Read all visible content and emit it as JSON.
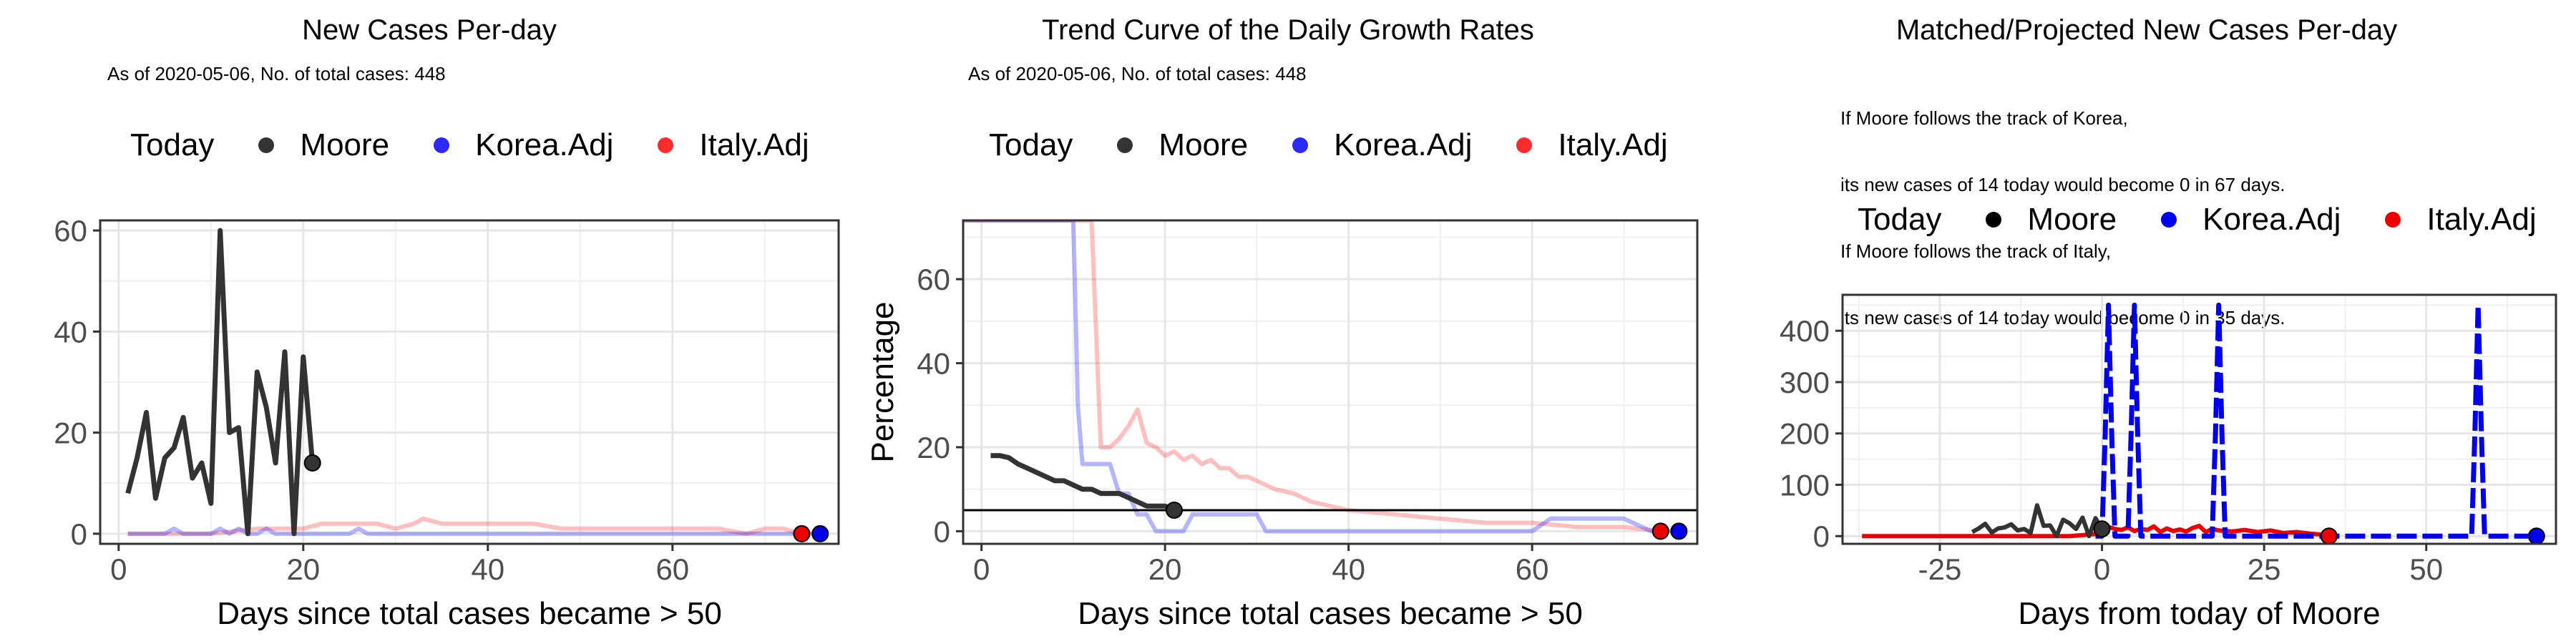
{
  "legend": {
    "title": "Today",
    "items": [
      {
        "label": "Moore",
        "color": "#333333"
      },
      {
        "label": "Korea.Adj",
        "color": "#2a2aff"
      },
      {
        "label": "Italy.Adj",
        "color": "#ff2a2a"
      }
    ]
  },
  "colors": {
    "moore": "#333333",
    "korea": "#2a2aff",
    "italy": "#ff2a2a"
  },
  "panels": [
    {
      "title": "New Cases Per-day",
      "subtitle": "As of 2020-05-06, No. of total cases: 448"
    },
    {
      "title": "Trend Curve of the Daily Growth Rates",
      "subtitle": "As of 2020-05-06, No. of total cases: 448"
    },
    {
      "title": "Matched/Projected New Cases Per-day",
      "subtitle_lines": [
        "If Moore follows the track of Korea,",
        "its new cases of 14 today would become 0 in 67 days.",
        "If Moore follows the track of Italy,",
        "its new cases of 14 today would become 0 in 35 days."
      ]
    }
  ],
  "chart_data": [
    {
      "type": "line",
      "title": "New Cases Per-day",
      "subtitle": "As of 2020-05-06, No. of total cases: 448",
      "xlabel": "Days since total cases became > 50",
      "ylabel": "",
      "xlim": [
        -2,
        78
      ],
      "ylim": [
        -2,
        62
      ],
      "xticks": [
        0,
        20,
        40,
        60
      ],
      "yticks": [
        0,
        20,
        40,
        60
      ],
      "grid": true,
      "series": [
        {
          "name": "Moore",
          "x": [
            1,
            2,
            3,
            4,
            5,
            6,
            7,
            8,
            9,
            10,
            11,
            12,
            13,
            14,
            15,
            16,
            17,
            18,
            19,
            20,
            21
          ],
          "y": [
            8,
            15,
            24,
            7,
            15,
            17,
            23,
            11,
            14,
            6,
            60,
            20,
            21,
            0,
            32,
            25,
            14,
            36,
            0,
            35,
            14
          ]
        },
        {
          "name": "Korea.Adj",
          "x": [
            1,
            5,
            6,
            7,
            10,
            11,
            12,
            13,
            14,
            15,
            16,
            17,
            18,
            19,
            20,
            25,
            26,
            27,
            28,
            40,
            60,
            70,
            76
          ],
          "y": [
            0,
            0,
            1,
            0,
            0,
            1,
            0,
            1,
            0,
            0,
            1,
            0,
            0,
            0,
            0,
            0,
            1,
            0,
            0,
            0,
            0,
            0,
            0
          ]
        },
        {
          "name": "Italy.Adj",
          "x": [
            1,
            5,
            10,
            15,
            20,
            22,
            25,
            28,
            30,
            32,
            33,
            35,
            38,
            40,
            42,
            45,
            48,
            50,
            52,
            55,
            58,
            60,
            62,
            65,
            68,
            70,
            72,
            74
          ],
          "y": [
            0,
            0,
            0,
            1,
            1,
            2,
            2,
            2,
            1,
            2,
            3,
            2,
            2,
            2,
            2,
            2,
            1,
            1,
            1,
            1,
            1,
            1,
            1,
            1,
            0,
            1,
            1,
            0
          ]
        }
      ],
      "today_points": [
        {
          "name": "Moore",
          "x": 21,
          "y": 14
        },
        {
          "name": "Italy.Adj",
          "x": 74,
          "y": 0
        },
        {
          "name": "Korea.Adj",
          "x": 76,
          "y": 0
        }
      ]
    },
    {
      "type": "line",
      "title": "Trend Curve of the Daily Growth Rates",
      "subtitle": "As of 2020-05-06, No. of total cases: 448",
      "xlabel": "Days since total cases became > 50",
      "ylabel": "Percentage",
      "xlim": [
        -2,
        78
      ],
      "ylim": [
        -3,
        74
      ],
      "xticks": [
        0,
        20,
        40,
        60
      ],
      "yticks": [
        0,
        20,
        40,
        60
      ],
      "grid": true,
      "hline": 5,
      "series": [
        {
          "name": "Moore",
          "x": [
            1,
            2,
            3,
            4,
            5,
            6,
            7,
            8,
            9,
            10,
            11,
            12,
            13,
            14,
            15,
            16,
            17,
            18,
            19,
            20,
            21
          ],
          "y": [
            18,
            18,
            17.5,
            16,
            15,
            14,
            13,
            12,
            12,
            11,
            10,
            10,
            9,
            9,
            9,
            8,
            7,
            6,
            6,
            6,
            5
          ]
        },
        {
          "name": "Korea.Adj",
          "x": [
            -2,
            10,
            10.5,
            11,
            12,
            13,
            14,
            15,
            16,
            17,
            18,
            19,
            20,
            22,
            23,
            24,
            25,
            30,
            31,
            32,
            40,
            50,
            60,
            62,
            70,
            73,
            76
          ],
          "y": [
            74,
            74,
            30,
            16,
            16,
            16,
            16,
            9,
            9,
            4,
            4,
            0,
            0,
            0,
            4,
            4,
            4,
            4,
            0,
            0,
            0,
            0,
            0,
            3,
            3,
            0,
            0
          ]
        },
        {
          "name": "Italy.Adj",
          "x": [
            -2,
            12,
            13,
            14,
            15,
            16,
            17,
            18,
            19,
            20,
            21,
            22,
            23,
            24,
            25,
            26,
            27,
            28,
            29,
            30,
            31,
            32,
            34,
            36,
            38,
            40,
            45,
            50,
            55,
            60,
            65,
            70,
            74
          ],
          "y": [
            74,
            74,
            20,
            20,
            22,
            25,
            29,
            21,
            20,
            18,
            19,
            17,
            18,
            16,
            17,
            15,
            15,
            13,
            13,
            12,
            11,
            10,
            9,
            7,
            6,
            5,
            4,
            3,
            2,
            2,
            1,
            1,
            0
          ]
        }
      ],
      "today_points": [
        {
          "name": "Moore",
          "x": 21,
          "y": 5
        },
        {
          "name": "Italy.Adj",
          "x": 74,
          "y": 0
        },
        {
          "name": "Korea.Adj",
          "x": 76,
          "y": 0
        }
      ]
    },
    {
      "type": "line",
      "title": "Matched/Projected New Cases Per-day",
      "subtitle": "If Moore follows the track of Korea, its new cases of 14 today would become 0 in 67 days. If Moore follows the track of Italy, its new cases of 14 today would become 0 in 35 days.",
      "xlabel": "Days from today of Moore",
      "ylabel": "",
      "xlim": [
        -40,
        70
      ],
      "ylim": [
        -15,
        470
      ],
      "xticks": [
        -25,
        0,
        25,
        50
      ],
      "yticks": [
        0,
        100,
        200,
        300,
        400
      ],
      "grid": true,
      "series": [
        {
          "name": "Moore",
          "x": [
            -20,
            -19,
            -18,
            -17,
            -16,
            -15,
            -14,
            -13,
            -12,
            -11,
            -10,
            -9,
            -8,
            -7,
            -6,
            -5,
            -4,
            -3,
            -2,
            -1,
            0
          ],
          "y": [
            8,
            15,
            24,
            7,
            15,
            17,
            23,
            11,
            14,
            6,
            60,
            20,
            21,
            0,
            32,
            25,
            14,
            36,
            0,
            35,
            14
          ]
        },
        {
          "name": "Korea.Adj",
          "x": [
            -1,
            0,
            0.5,
            1,
            1.5,
            2,
            3,
            4,
            4.5,
            5,
            5.5,
            6,
            8,
            10,
            16,
            17,
            17.5,
            18,
            18.5,
            19,
            20,
            30,
            40,
            55,
            56,
            57,
            57.5,
            58,
            58.5,
            59,
            60,
            67
          ],
          "y": [
            0,
            0,
            200,
            450,
            200,
            0,
            0,
            0,
            200,
            450,
            200,
            0,
            0,
            0,
            0,
            0,
            200,
            450,
            200,
            0,
            0,
            0,
            0,
            0,
            0,
            0,
            200,
            450,
            200,
            0,
            0,
            0
          ]
        },
        {
          "name": "Italy.Adj",
          "x": [
            -37,
            -30,
            -20,
            -10,
            -5,
            0,
            1,
            2,
            3,
            4,
            5,
            6,
            7,
            8,
            9,
            10,
            11,
            12,
            13,
            14,
            15,
            16,
            17,
            18,
            20,
            22,
            24,
            26,
            28,
            30,
            32,
            34,
            35
          ],
          "y": [
            0,
            0,
            0,
            0,
            0,
            5,
            18,
            14,
            12,
            17,
            10,
            14,
            12,
            19,
            8,
            15,
            10,
            13,
            9,
            16,
            20,
            8,
            14,
            11,
            9,
            12,
            8,
            11,
            6,
            8,
            5,
            3,
            0
          ]
        }
      ],
      "today_points": [
        {
          "name": "Moore",
          "x": 0,
          "y": 14
        },
        {
          "name": "Italy.Adj",
          "x": 35,
          "y": 0
        },
        {
          "name": "Korea.Adj",
          "x": 67,
          "y": 0
        }
      ]
    }
  ]
}
